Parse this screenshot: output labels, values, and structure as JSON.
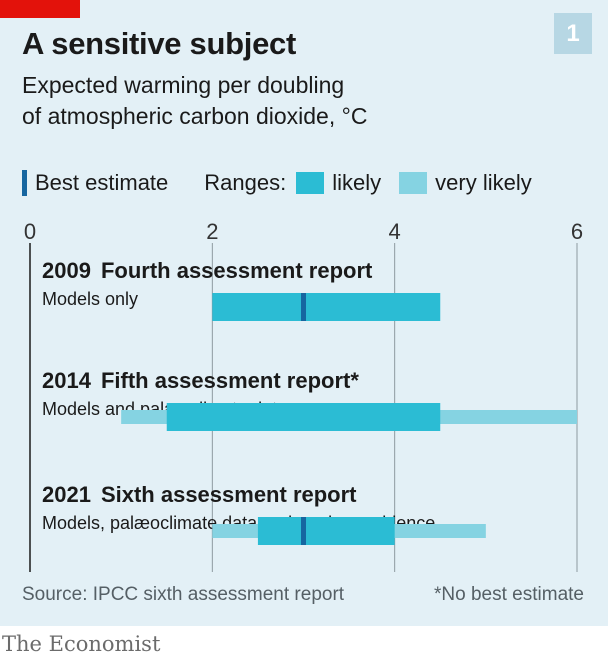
{
  "header": {
    "title": "A sensitive subject",
    "subtitle_line1": "Expected warming per doubling",
    "subtitle_line2": "of atmospheric carbon dioxide, °C",
    "chart_number": "1"
  },
  "legend": {
    "best_label": "Best estimate",
    "ranges_label": "Ranges:",
    "likely_label": "likely",
    "very_likely_label": "very likely"
  },
  "colors": {
    "likely": "#2bbcd4",
    "very_likely": "#85d3e2",
    "best": "#1666a0",
    "grid": "#8e9aa0",
    "panel": "#e3f0f6",
    "brand_red": "#e3120b"
  },
  "chart_data": {
    "type": "bar",
    "xlim": [
      0,
      6
    ],
    "xticks": [
      "0",
      "2",
      "4",
      "6"
    ],
    "series": [
      {
        "year": "2009",
        "report": "Fourth assessment report",
        "note": "Models only",
        "likely": [
          2.0,
          4.5
        ],
        "very_likely": null,
        "best": 3.0
      },
      {
        "year": "2014",
        "report": "Fifth assessment report*",
        "note": "Models and palæoclimate data",
        "likely": [
          1.5,
          4.5
        ],
        "very_likely": [
          1.0,
          6.0
        ],
        "best": null
      },
      {
        "year": "2021",
        "report": "Sixth assessment report",
        "note": "Models, palæoclimate data and modern evidence",
        "likely": [
          2.5,
          4.0
        ],
        "very_likely": [
          2.0,
          5.0
        ],
        "best": 3.0
      }
    ]
  },
  "footer": {
    "source": "Source: IPCC sixth assessment report",
    "note": "*No best estimate",
    "brand": "The Economist"
  }
}
